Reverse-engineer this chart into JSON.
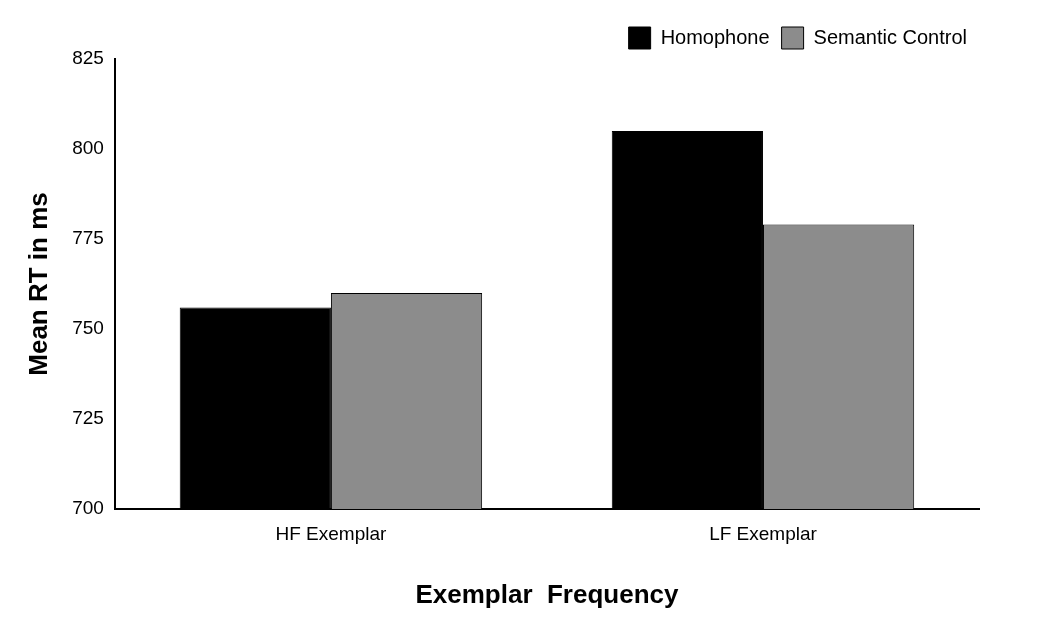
{
  "chart_data": {
    "type": "bar",
    "xlabel": "Exemplar  Frequency",
    "ylabel": "Mean RT in ms",
    "categories": [
      "HF Exemplar",
      "LF Exemplar"
    ],
    "series": [
      {
        "name": "Homophone",
        "color": "#000000",
        "values": [
          756,
          805
        ]
      },
      {
        "name": "Semantic Control",
        "color": "#8c8c8c",
        "values": [
          760,
          779
        ]
      }
    ],
    "ylim": [
      700,
      825
    ],
    "yticks": [
      700,
      725,
      750,
      775,
      800,
      825
    ],
    "grid": false,
    "legend": "top right"
  }
}
